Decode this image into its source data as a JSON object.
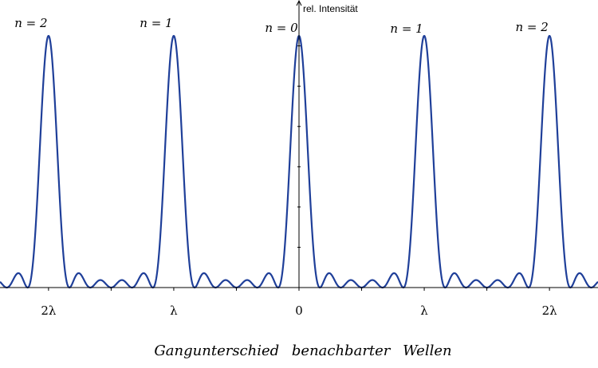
{
  "chart_data": {
    "type": "line",
    "title": "",
    "ylabel": "rel. Intensität",
    "xlabel": "Gangunterschied   benachbarter   Wellen",
    "xlim": [
      -2.3875,
      2.3875
    ],
    "ylim": [
      0,
      1
    ],
    "grid": false,
    "legend": "none",
    "line_color": "#1f3f99",
    "axis_color": "#000000",
    "function": "(sin(6*pi*x)/(6*sin(pi*x)))^2",
    "slit_count": 6,
    "x_ticks": [
      {
        "value": -2,
        "label": "2λ"
      },
      {
        "value": -1.5,
        "label": ""
      },
      {
        "value": -1,
        "label": "λ"
      },
      {
        "value": -0.5,
        "label": ""
      },
      {
        "value": 0,
        "label": "0"
      },
      {
        "value": 0.5,
        "label": ""
      },
      {
        "value": 1,
        "label": "λ"
      },
      {
        "value": 1.5,
        "label": ""
      },
      {
        "value": 2,
        "label": "2λ"
      }
    ],
    "y_ticks": [
      0.16,
      0.32,
      0.48,
      0.64,
      0.8,
      0.96
    ],
    "peaks": [
      {
        "x": -2,
        "y": 1,
        "label": "n = 2"
      },
      {
        "x": -1,
        "y": 1,
        "label": "n = 1"
      },
      {
        "x": 0,
        "y": 1,
        "label": "n = 0"
      },
      {
        "x": 1,
        "y": 1,
        "label": "n = 1"
      },
      {
        "x": 2,
        "y": 1,
        "label": "n = 2"
      }
    ]
  }
}
